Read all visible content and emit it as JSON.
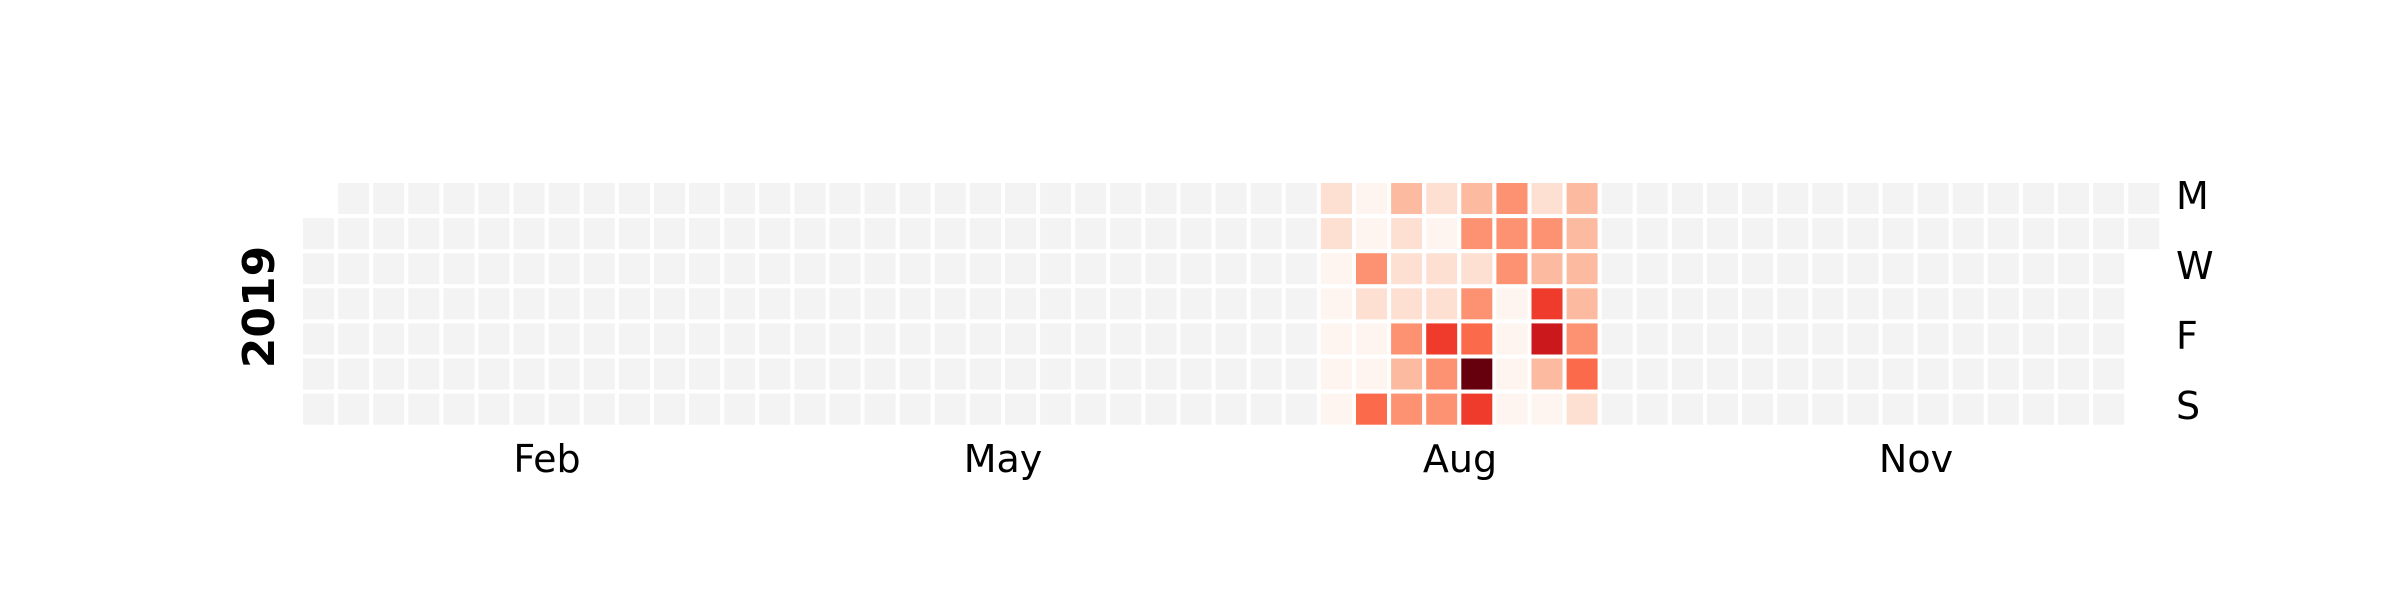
{
  "chart_data": {
    "type": "heatmap",
    "title": "",
    "year_label": "2019",
    "start_date": "2019-01-01",
    "end_date": "2019-12-31",
    "x_tick_labels": [
      "Feb",
      "May",
      "Aug",
      "Nov"
    ],
    "y_tick_labels": [
      "M",
      "W",
      "F",
      "S"
    ],
    "empty_color": "#f3f3f3",
    "colormap": [
      "#fff5f0",
      "#fee0d2",
      "#fcbba1",
      "#fc9272",
      "#fb6a4a",
      "#ef3b2c",
      "#cb181d",
      "#a50f15",
      "#67000d"
    ],
    "value_range": [
      0,
      8
    ],
    "active_weeks": [
      {
        "week": 29,
        "values": [
          1,
          1,
          0,
          0,
          0,
          0,
          0
        ]
      },
      {
        "week": 30,
        "values": [
          0,
          0,
          3,
          1,
          0,
          0,
          4
        ]
      },
      {
        "week": 31,
        "values": [
          2,
          1,
          1,
          1,
          3,
          2,
          3
        ]
      },
      {
        "week": 32,
        "values": [
          1,
          0,
          1,
          1,
          5,
          3,
          3
        ]
      },
      {
        "week": 33,
        "values": [
          2,
          3,
          1,
          3,
          4,
          8,
          5
        ]
      },
      {
        "week": 34,
        "values": [
          3,
          3,
          3,
          0,
          0,
          0,
          0
        ]
      },
      {
        "week": 35,
        "values": [
          1,
          3,
          2,
          5,
          6,
          2,
          0
        ]
      },
      {
        "week": 36,
        "values": [
          2,
          2,
          2,
          2,
          3,
          4,
          1
        ]
      }
    ]
  }
}
